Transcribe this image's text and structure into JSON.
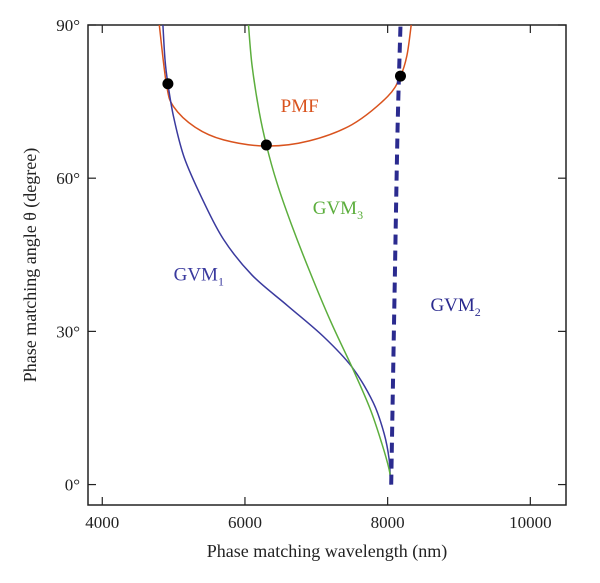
{
  "chart_data": {
    "type": "line",
    "xlabel": "Phase matching wavelength (nm)",
    "ylabel": "Phase matching angle θ (degree)",
    "xlim": [
      3800,
      10500
    ],
    "ylim": [
      -4,
      90
    ],
    "xticks": [
      {
        "value": 4000,
        "label": "4000"
      },
      {
        "value": 6000,
        "label": "6000"
      },
      {
        "value": 8000,
        "label": "8000"
      },
      {
        "value": 10000,
        "label": "10000"
      }
    ],
    "yticks": [
      {
        "value": 0,
        "label": "0°"
      },
      {
        "value": 30,
        "label": "30°"
      },
      {
        "value": 60,
        "label": "60°"
      },
      {
        "value": 90,
        "label": "90°"
      }
    ],
    "grid": false,
    "series": [
      {
        "name": "PMF",
        "color": "#d9531e",
        "dash": false,
        "label_pos": {
          "x": 6500,
          "y": 73
        },
        "points": [
          [
            4800,
            90
          ],
          [
            4900,
            78.3
          ],
          [
            5000,
            74
          ],
          [
            5300,
            70
          ],
          [
            5700,
            67.5
          ],
          [
            6300,
            66.3
          ],
          [
            6900,
            67.3
          ],
          [
            7500,
            70.5
          ],
          [
            8000,
            76
          ],
          [
            8180,
            80
          ],
          [
            8270,
            84
          ],
          [
            8330,
            90
          ]
        ]
      },
      {
        "name": "GVM",
        "subscript": "1",
        "color": "#3a3a9e",
        "dash": false,
        "label_pos": {
          "x": 5000,
          "y": 40
        },
        "points": [
          [
            4850,
            90
          ],
          [
            4880,
            83
          ],
          [
            4920,
            78.5
          ],
          [
            5000,
            72
          ],
          [
            5150,
            64
          ],
          [
            5400,
            56
          ],
          [
            5700,
            48
          ],
          [
            6100,
            41
          ],
          [
            6600,
            35
          ],
          [
            7100,
            29
          ],
          [
            7500,
            23
          ],
          [
            7800,
            16
          ],
          [
            7950,
            10
          ],
          [
            8020,
            5
          ],
          [
            8040,
            0
          ]
        ]
      },
      {
        "name": "GVM",
        "subscript": "3",
        "color": "#5cae3d",
        "dash": false,
        "label_pos": {
          "x": 6950,
          "y": 53
        },
        "points": [
          [
            6050,
            90
          ],
          [
            6100,
            82
          ],
          [
            6200,
            73
          ],
          [
            6300,
            66.5
          ],
          [
            6450,
            59
          ],
          [
            6650,
            51
          ],
          [
            6900,
            42
          ],
          [
            7200,
            32
          ],
          [
            7500,
            23
          ],
          [
            7750,
            15
          ],
          [
            7920,
            8
          ],
          [
            8020,
            3
          ],
          [
            8050,
            0
          ]
        ]
      },
      {
        "name": "GVM",
        "subscript": "2",
        "color": "#2b2b8f",
        "dash": true,
        "label_pos": {
          "x": 8600,
          "y": 34
        },
        "points": [
          [
            8050,
            0
          ],
          [
            8100,
            40
          ],
          [
            8140,
            70
          ],
          [
            8180,
            90
          ]
        ]
      }
    ],
    "markers": [
      {
        "x": 4920,
        "y": 78.5
      },
      {
        "x": 6300,
        "y": 66.5
      },
      {
        "x": 8180,
        "y": 80
      }
    ]
  }
}
